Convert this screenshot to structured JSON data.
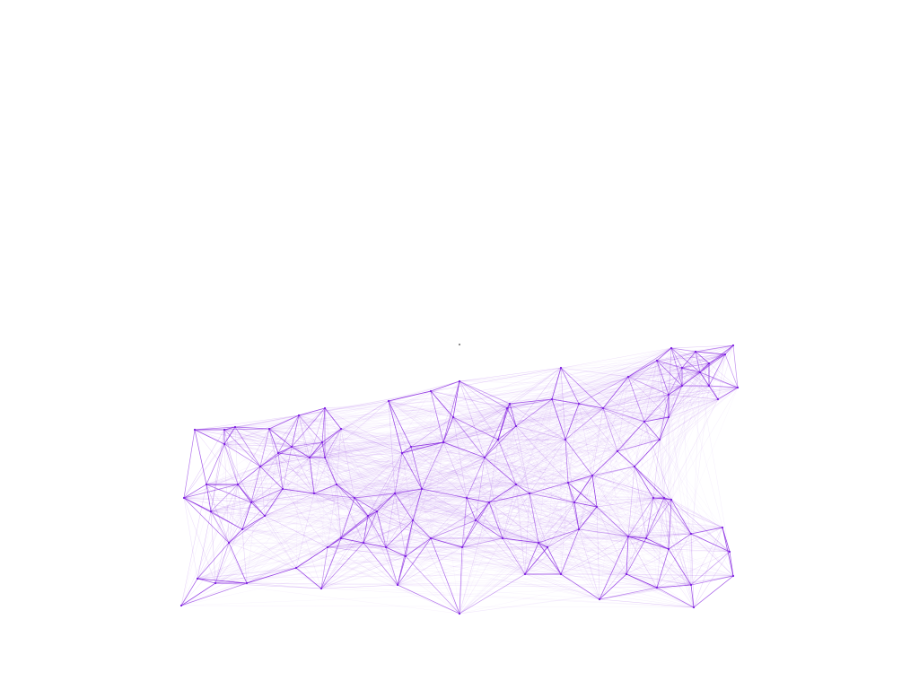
{
  "graph": {
    "edge_color": "#8a2be2",
    "node_color": "#7b1fe0",
    "background": "#ffffff"
  }
}
